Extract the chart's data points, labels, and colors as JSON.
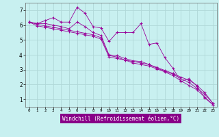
{
  "xlabel": "Windchill (Refroidissement éolien,°C)",
  "bg_color": "#c8f0f0",
  "grid_color": "#b0d8d8",
  "line_color": "#990099",
  "x_data": [
    0,
    1,
    2,
    3,
    4,
    5,
    6,
    7,
    8,
    9,
    10,
    11,
    12,
    13,
    14,
    15,
    16,
    17,
    18,
    19,
    20,
    21,
    22,
    23
  ],
  "line1": [
    6.2,
    6.1,
    6.3,
    6.5,
    6.2,
    6.2,
    7.2,
    6.8,
    5.9,
    5.8,
    4.9,
    5.5,
    5.5,
    5.5,
    6.1,
    4.7,
    4.8,
    3.8,
    3.1,
    2.2,
    2.4,
    1.9,
    1.1,
    0.65
  ],
  "line2": [
    6.2,
    6.1,
    6.1,
    6.0,
    5.9,
    5.75,
    6.2,
    5.9,
    5.5,
    5.3,
    4.0,
    3.95,
    3.75,
    3.6,
    3.55,
    3.35,
    3.15,
    2.95,
    2.75,
    2.5,
    2.3,
    1.95,
    1.45,
    0.75
  ],
  "line3": [
    6.2,
    6.05,
    5.95,
    5.85,
    5.75,
    5.65,
    5.55,
    5.45,
    5.35,
    5.15,
    3.95,
    3.85,
    3.65,
    3.55,
    3.45,
    3.35,
    3.1,
    2.9,
    2.7,
    2.4,
    2.15,
    1.75,
    1.35,
    0.75
  ],
  "line4": [
    6.2,
    5.95,
    5.85,
    5.75,
    5.65,
    5.55,
    5.45,
    5.35,
    5.25,
    5.05,
    3.85,
    3.75,
    3.65,
    3.45,
    3.35,
    3.25,
    3.05,
    2.85,
    2.6,
    2.25,
    1.95,
    1.65,
    1.15,
    0.65
  ],
  "ylim": [
    0.5,
    7.5
  ],
  "yticks": [
    1,
    2,
    3,
    4,
    5,
    6,
    7
  ],
  "xticks": [
    0,
    1,
    2,
    3,
    4,
    5,
    6,
    7,
    8,
    9,
    10,
    11,
    12,
    13,
    14,
    15,
    16,
    17,
    18,
    19,
    20,
    21,
    22,
    23
  ],
  "xlabel_bg": "#880088",
  "xlabel_fg": "#ffffff"
}
